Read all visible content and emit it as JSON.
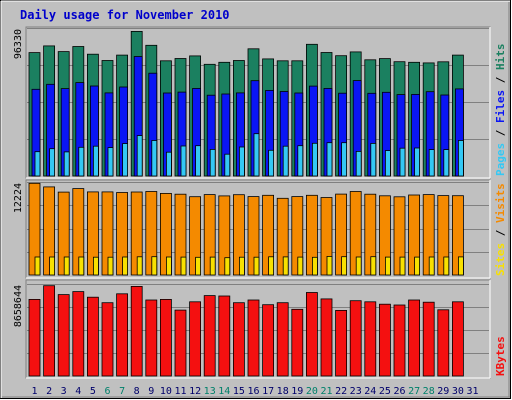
{
  "chart_data": {
    "type": "bar",
    "title": "Daily usage for November 2010",
    "categories": [
      "1",
      "2",
      "3",
      "4",
      "5",
      "6",
      "7",
      "8",
      "9",
      "10",
      "11",
      "12",
      "13",
      "14",
      "15",
      "16",
      "17",
      "18",
      "19",
      "20",
      "21",
      "22",
      "23",
      "24",
      "25",
      "26",
      "27",
      "28",
      "29",
      "30",
      "31"
    ],
    "weekend_days": [
      "6",
      "7",
      "13",
      "14",
      "20",
      "21",
      "27",
      "28"
    ],
    "panels": [
      {
        "id": "hits",
        "ymax_label": "96330",
        "ylim": [
          0,
          96330
        ],
        "legend": [
          "Pages",
          "Files",
          "Hits"
        ],
        "series": [
          {
            "name": "Hits",
            "values": [
              80300,
              84700,
              81000,
              84300,
              79300,
              75200,
              78700,
              94100,
              85100,
              75000,
              76500,
              78200,
              72700,
              74000,
              75200,
              82800,
              76200,
              75000,
              75000,
              85700,
              80400,
              78300,
              80800,
              75600,
              76400,
              74400,
              74000,
              73600,
              74300,
              78700,
              0
            ]
          },
          {
            "name": "Files",
            "values": [
              56400,
              59700,
              56900,
              60800,
              58600,
              54100,
              57900,
              77800,
              66900,
              54000,
              54600,
              57000,
              52600,
              53400,
              54100,
              62000,
              55700,
              55000,
              54000,
              58500,
              57000,
              53900,
              62100,
              53800,
              54500,
              53000,
              53100,
              54900,
              52700,
              56700,
              0
            ]
          },
          {
            "name": "Pages",
            "values": [
              15800,
              17800,
              15700,
              18700,
              19400,
              18500,
              21100,
              26300,
              23100,
              15500,
              19500,
              19700,
              17300,
              14200,
              18900,
              27500,
              16700,
              19400,
              19700,
              21300,
              21700,
              21700,
              16000,
              21200,
              16500,
              18100,
              18200,
              17200,
              17200,
              23100,
              0
            ]
          }
        ]
      },
      {
        "id": "visits",
        "ymax_label": "12224",
        "ylim": [
          0,
          12224
        ],
        "legend": [
          "Sites",
          "Visits"
        ],
        "series": [
          {
            "name": "Visits",
            "values": [
              12050,
              11580,
              10890,
              11360,
              10920,
              10920,
              10840,
              10910,
              10970,
              10730,
              10620,
              10290,
              10570,
              10400,
              10550,
              10300,
              10470,
              10080,
              10310,
              10480,
              10190,
              10640,
              10980,
              10620,
              10410,
              10280,
              10510,
              10570,
              10440,
              10420,
              0
            ]
          },
          {
            "name": "Sites",
            "values": [
              2360,
              2360,
              2360,
              2370,
              2340,
              2340,
              2360,
              2390,
              2400,
              2360,
              2350,
              2330,
              2350,
              2270,
              2340,
              2340,
              2390,
              2380,
              2350,
              2320,
              2450,
              2400,
              2360,
              2400,
              2350,
              2350,
              2350,
              2360,
              2360,
              2380,
              0
            ]
          }
        ]
      },
      {
        "id": "kbytes",
        "ymax_label": "8658644",
        "ylim": [
          0,
          8658644
        ],
        "legend": [
          "KBytes"
        ],
        "series": [
          {
            "name": "KBytes",
            "values": [
              7210000,
              8500000,
              7660000,
              7940000,
              7420000,
              6900000,
              7740000,
              8430000,
              7150000,
              7210000,
              6200000,
              6980000,
              7570000,
              7530000,
              6900000,
              7150000,
              6710000,
              6900000,
              6280000,
              7860000,
              7260000,
              6170000,
              7090000,
              6980000,
              6760000,
              6680000,
              7150000,
              6950000,
              6230000,
              6980000,
              0
            ]
          }
        ]
      }
    ],
    "colors": {
      "Hits": "#1b8060",
      "Files": "#0a16f4",
      "Pages": "#34c8f4",
      "Visits": "#f48a00",
      "Sites": "#f8e000",
      "KBytes": "#f41010",
      "weekday_label": "#00006a",
      "weekend_label": "#00806a",
      "title": "#0000cc"
    }
  }
}
